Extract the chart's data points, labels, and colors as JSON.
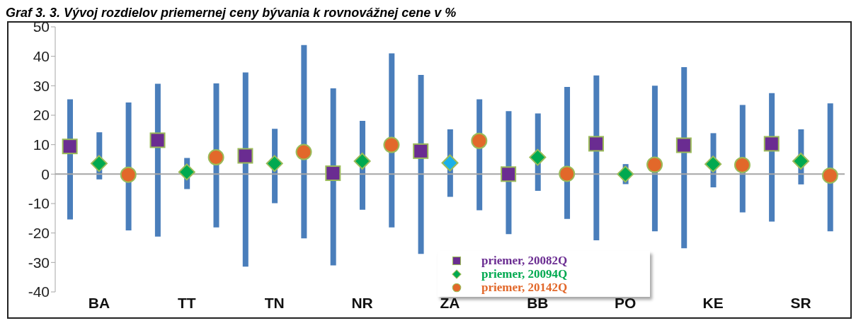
{
  "chart_data": {
    "type": "bar",
    "title": "Graf 3. 3. Vývoj rozdielov priemernej ceny bývania k rovnovážnej cene v %",
    "categories": [
      null,
      "BA",
      null,
      null,
      "TT",
      null,
      null,
      "TN",
      null,
      null,
      "NR",
      null,
      null,
      "ZA",
      null,
      null,
      "BB",
      null,
      null,
      "PO",
      null,
      null,
      "KE",
      null,
      null,
      "SR",
      null
    ],
    "series": [
      {
        "color": "#4a7ebb",
        "base": [
          -15.4,
          -1.8,
          -19.1,
          -21.2,
          -5.1,
          -18.1,
          -31.4,
          -9.9,
          -21.8,
          -31.0,
          -12.1,
          -18.1,
          -27.1,
          -7.7,
          -12.3,
          -20.4,
          -5.7,
          -15.2,
          -22.5,
          -3.4,
          -19.4,
          -25.2,
          -4.5,
          -13.0,
          -16.1,
          -3.5,
          -19.4
        ],
        "values": [
          40.8,
          16.0,
          43.4,
          51.9,
          10.6,
          48.9,
          65.9,
          25.3,
          65.6,
          60.1,
          30.2,
          59.1,
          60.8,
          22.9,
          37.7,
          41.8,
          26.3,
          44.8,
          56.0,
          6.8,
          49.4,
          61.5,
          18.4,
          36.5,
          43.6,
          18.7,
          43.4
        ]
      },
      {
        "type": "scatter",
        "name": "priemer, 20082Q",
        "color": "#6a2c91",
        "marker": "square",
        "values": [
          9.4,
          null,
          null,
          11.5,
          null,
          null,
          6.2,
          null,
          null,
          0.3,
          null,
          null,
          7.8,
          null,
          null,
          0.0,
          null,
          null,
          10.3,
          null,
          null,
          9.8,
          null,
          null,
          10.3,
          null,
          null
        ]
      },
      {
        "type": "scatter",
        "name": "priemer, 20094Q",
        "color": "#00a950",
        "colors": [
          null,
          "#00a950",
          null,
          null,
          "#00a950",
          null,
          null,
          "#00a950",
          null,
          null,
          "#00a950",
          null,
          null,
          "#1ab0e8",
          null,
          null,
          "#00a950",
          null,
          null,
          "#00a950",
          null,
          null,
          "#00a950",
          null,
          null,
          "#00a950",
          null
        ],
        "marker": "diamond",
        "values": [
          null,
          3.6,
          null,
          null,
          0.7,
          null,
          null,
          3.6,
          null,
          null,
          4.4,
          null,
          null,
          3.8,
          null,
          null,
          5.7,
          null,
          null,
          0.0,
          null,
          null,
          3.4,
          null,
          null,
          4.4,
          null
        ]
      },
      {
        "type": "scatter",
        "name": "priemer, 20142Q",
        "color": "#e2682a",
        "marker": "circle",
        "values": [
          null,
          null,
          -0.2,
          null,
          null,
          5.7,
          null,
          null,
          7.5,
          null,
          null,
          9.9,
          null,
          null,
          11.3,
          null,
          null,
          0.1,
          null,
          null,
          3.2,
          null,
          null,
          3.1,
          null,
          null,
          -0.5
        ]
      }
    ],
    "ylim": [
      -40,
      50
    ],
    "yticks": [
      -40,
      -30,
      -20,
      -10,
      0,
      10,
      20,
      30,
      40,
      50
    ],
    "ref_lines": [
      {
        "axis": "y",
        "value": 0,
        "color": "#a6a6a6"
      }
    ],
    "legend": "bottom"
  }
}
